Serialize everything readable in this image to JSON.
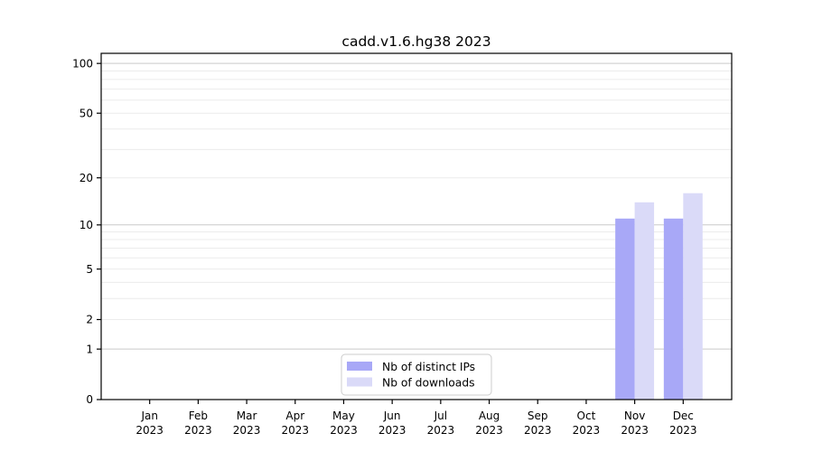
{
  "chart_data": {
    "type": "bar",
    "title": "cadd.v1.6.hg38 2023",
    "categories": [
      "Jan",
      "Feb",
      "Mar",
      "Apr",
      "May",
      "Jun",
      "Jul",
      "Aug",
      "Sep",
      "Oct",
      "Nov",
      "Dec"
    ],
    "category_year": "2023",
    "series": [
      {
        "name": "Nb of distinct IPs",
        "color": "#a8a8f7",
        "values": [
          0,
          0,
          0,
          0,
          0,
          0,
          0,
          0,
          0,
          0,
          11,
          11
        ]
      },
      {
        "name": "Nb of downloads",
        "color": "#dadaf8",
        "values": [
          0,
          0,
          0,
          0,
          0,
          0,
          0,
          0,
          0,
          0,
          14,
          16
        ]
      }
    ],
    "xlabel": "",
    "ylabel": "",
    "yscale": "log1p",
    "ylim": [
      0,
      115
    ],
    "yticks": [
      100,
      50,
      20,
      10,
      5,
      2,
      1,
      0
    ],
    "grid": {
      "major_values": [
        1,
        10,
        100
      ],
      "minor_values": [
        2,
        3,
        4,
        5,
        6,
        7,
        8,
        9,
        20,
        30,
        40,
        50,
        60,
        70,
        80,
        90
      ],
      "major_color": "#c9c9c9",
      "minor_color": "#ececec"
    },
    "legend": {
      "position": "lower center",
      "entries": [
        {
          "label": "Nb of distinct IPs",
          "color": "#a8a8f7"
        },
        {
          "label": "Nb of downloads",
          "color": "#dadaf8"
        }
      ]
    },
    "axis_color": "#000000",
    "background_color": "#ffffff"
  }
}
